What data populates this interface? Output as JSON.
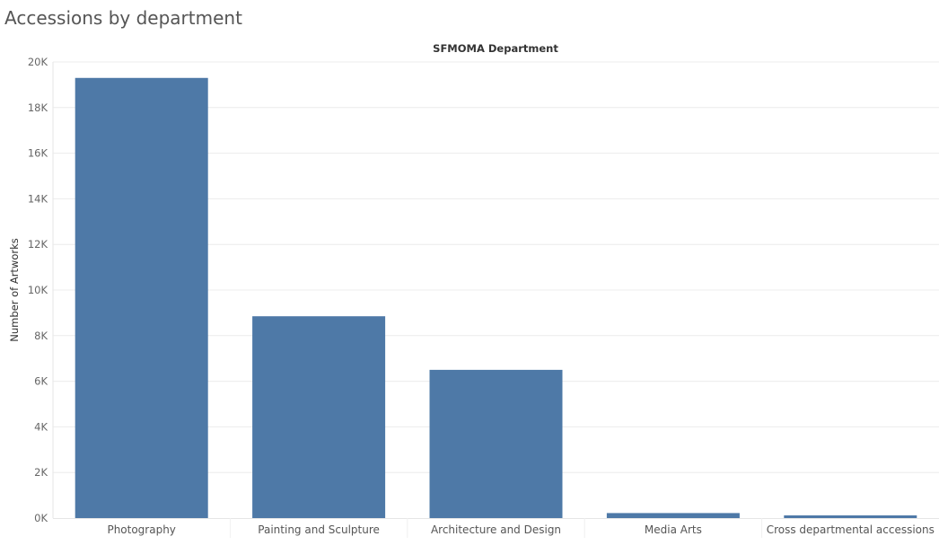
{
  "title": "Accessions by department",
  "chart_data": {
    "type": "bar",
    "title": "Accessions by department",
    "header": "SFMOMA Department",
    "xlabel": "SFMOMA Department",
    "ylabel": "Number of Artworks",
    "categories": [
      "Photography",
      "Painting and Sculpture",
      "Architecture and Design",
      "Media Arts",
      "Cross departmental accessions"
    ],
    "values": [
      19300,
      8850,
      6500,
      220,
      100
    ],
    "ylim": [
      0,
      20000
    ],
    "yticks": [
      0,
      2000,
      4000,
      6000,
      8000,
      10000,
      12000,
      14000,
      16000,
      18000,
      20000
    ],
    "ytick_labels": [
      "0K",
      "2K",
      "4K",
      "6K",
      "8K",
      "10K",
      "12K",
      "14K",
      "16K",
      "18K",
      "20K"
    ],
    "grid": true,
    "bar_color": "#4e79a7",
    "grid_color": "#ececec"
  }
}
